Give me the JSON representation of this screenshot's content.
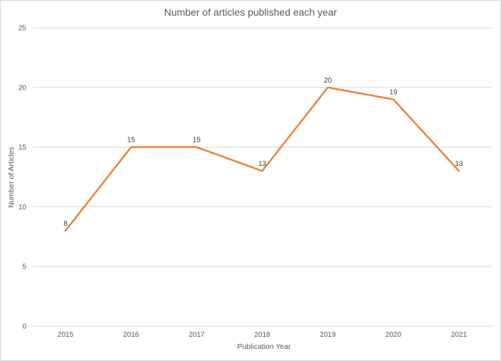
{
  "chart_data": {
    "type": "line",
    "title": "Number of articles published each year",
    "xlabel": "Publication Year",
    "ylabel": "Number of Articles",
    "categories": [
      "2015",
      "2016",
      "2017",
      "2018",
      "2019",
      "2020",
      "2021"
    ],
    "values": [
      8,
      15,
      15,
      13,
      20,
      19,
      13
    ],
    "ylim": [
      0,
      25
    ],
    "yticks": [
      0,
      5,
      10,
      15,
      20,
      25
    ],
    "grid": true,
    "legend": false,
    "data_labels": true,
    "line_color": "#ED7D31",
    "data_label_color": "#404040",
    "axis_text_color": "#595959",
    "gridline_color": "#D9D9D9",
    "axis_line_color": "#D9D9D9"
  }
}
